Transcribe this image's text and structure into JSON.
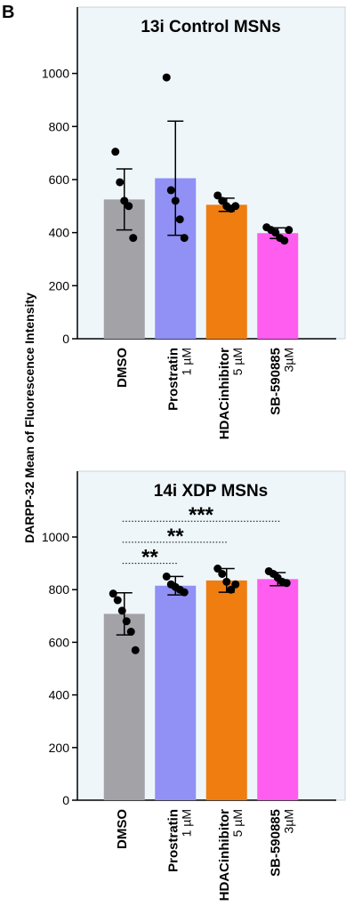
{
  "panel_label": "B",
  "y_label": "DARPP-32 Mean of Fluorescence Intensity",
  "chart_data": [
    {
      "type": "bar",
      "title": "13i Control MSNs",
      "categories": [
        "DMSO",
        "Prostratin",
        "HDACinhibitor",
        "SB-590885"
      ],
      "dose_labels": [
        null,
        "1 µM",
        "5 µM",
        "3µM"
      ],
      "colors": [
        "#a3a2a7",
        "#9090f5",
        "#f07d10",
        "#ff5cf0"
      ],
      "values": [
        525,
        605,
        505,
        398
      ],
      "errors": [
        115,
        215,
        25,
        20
      ],
      "points": [
        [
          705,
          590,
          520,
          500,
          380
        ],
        [
          985,
          560,
          520,
          450,
          380
        ],
        [
          540,
          520,
          500,
          490,
          500
        ],
        [
          420,
          410,
          400,
          380,
          370,
          410
        ]
      ],
      "ylim": [
        0,
        1250
      ],
      "yticks": [
        0,
        200,
        400,
        600,
        800,
        1000
      ],
      "comparisons": []
    },
    {
      "type": "bar",
      "title": "14i XDP MSNs",
      "categories": [
        "DMSO",
        "Prostratin",
        "HDACinhibitor",
        "SB-590885"
      ],
      "dose_labels": [
        null,
        "1 µM",
        "5 µM",
        "3µM"
      ],
      "colors": [
        "#a3a2a7",
        "#9090f5",
        "#f07d10",
        "#ff5cf0"
      ],
      "values": [
        708,
        815,
        835,
        840
      ],
      "errors": [
        80,
        35,
        45,
        25
      ],
      "points": [
        [
          785,
          760,
          720,
          680,
          640,
          570
        ],
        [
          850,
          820,
          810,
          800,
          790
        ],
        [
          880,
          860,
          830,
          800,
          820
        ],
        [
          870,
          860,
          845,
          830,
          825
        ]
      ],
      "ylim": [
        0,
        1250
      ],
      "yticks": [
        0,
        200,
        400,
        600,
        800,
        1000
      ],
      "comparisons": [
        {
          "from": 0,
          "to": 1,
          "y": 900,
          "label": "**"
        },
        {
          "from": 0,
          "to": 2,
          "y": 980,
          "label": "**"
        },
        {
          "from": 0,
          "to": 3,
          "y": 1060,
          "label": "***"
        }
      ]
    }
  ]
}
